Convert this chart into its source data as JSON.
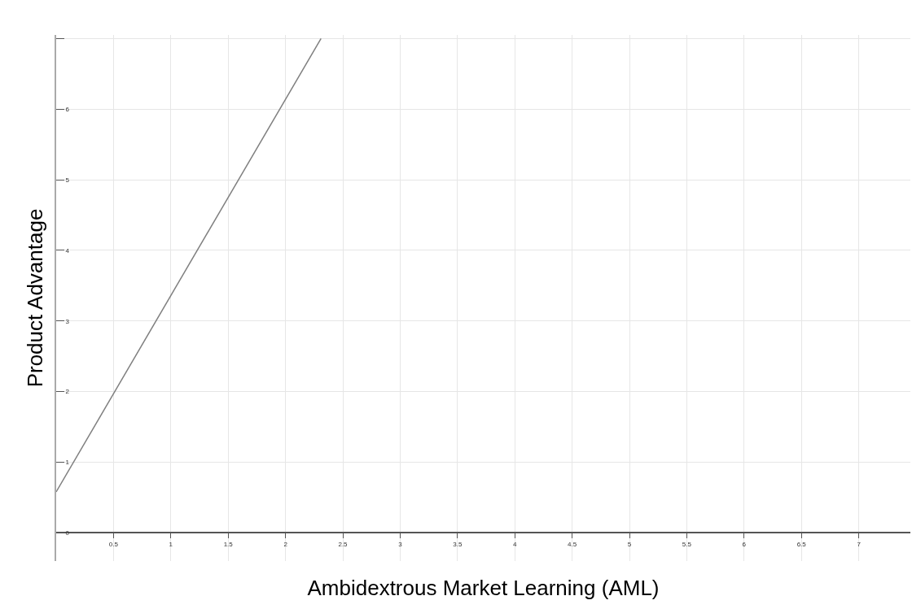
{
  "chart_data": {
    "type": "line",
    "xlabel": "Ambidextrous Market Learning (AML)",
    "ylabel": "Product Advantage",
    "x": [
      0,
      2.31
    ],
    "series": [
      {
        "color": "#7f7f7f",
        "values": [
          0.58,
          7
        ]
      }
    ],
    "xlim": [
      0,
      7.45
    ],
    "ylim": [
      -0.4,
      7.05
    ],
    "xticks": [
      0.5,
      1,
      1.5,
      2,
      2.5,
      3,
      3.5,
      4,
      4.5,
      5,
      5.5,
      6,
      6.5,
      7
    ],
    "yticks": [
      0,
      1,
      2,
      3,
      4,
      5,
      6,
      {
        "value": 7,
        "label": null
      }
    ],
    "grid": true,
    "marker": "none",
    "line_style": "solid"
  }
}
